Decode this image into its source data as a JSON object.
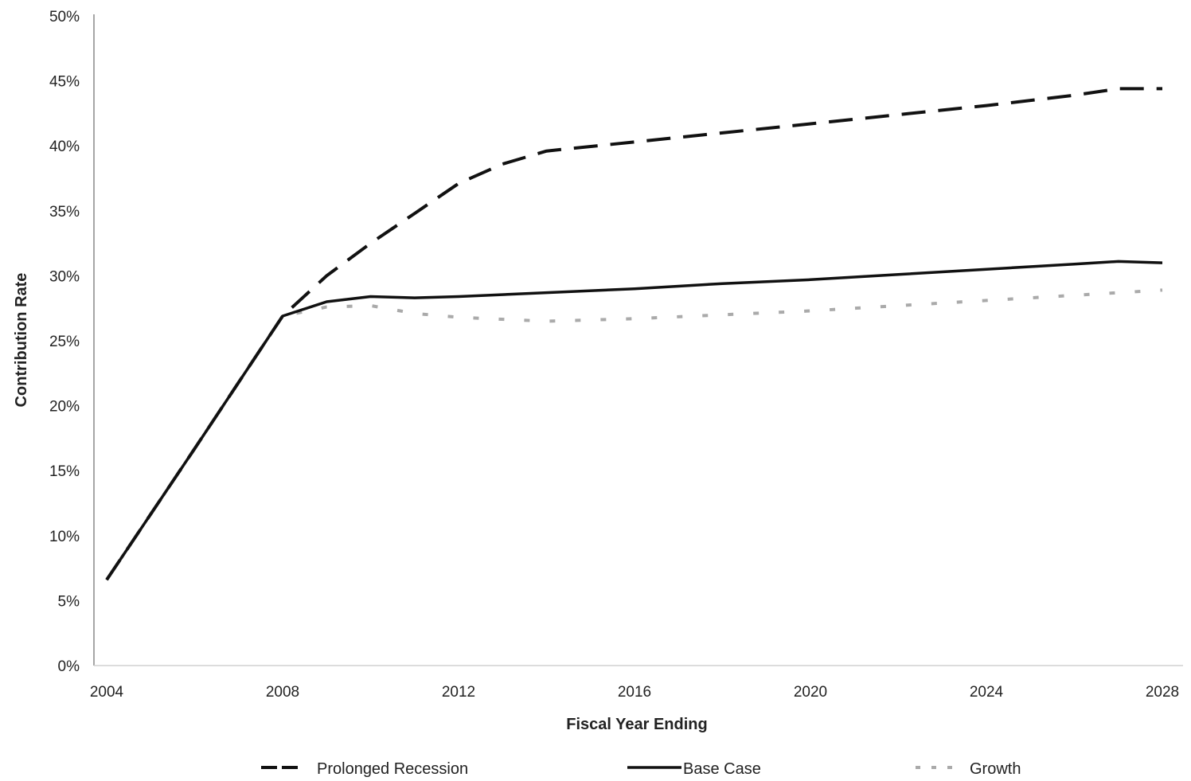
{
  "chart_data": {
    "type": "line",
    "title": "",
    "xlabel": "Fiscal Year Ending",
    "ylabel": "Contribution Rate",
    "xlim": [
      2004,
      2028
    ],
    "ylim": [
      0,
      50
    ],
    "x_ticks": [
      2004,
      2008,
      2012,
      2016,
      2020,
      2024,
      2028
    ],
    "y_ticks": [
      0,
      5,
      10,
      15,
      20,
      25,
      30,
      35,
      40,
      45,
      50
    ],
    "y_tick_format": "%",
    "grid": false,
    "legend": "bottom",
    "series": [
      {
        "name": "Prolonged Recession",
        "style": "dashed",
        "color": "#111111",
        "points": [
          [
            2004,
            6.6
          ],
          [
            2006,
            16.7
          ],
          [
            2008,
            26.9
          ],
          [
            2009,
            30.0
          ],
          [
            2010,
            32.5
          ],
          [
            2011,
            34.8
          ],
          [
            2012,
            37.1
          ],
          [
            2013,
            38.6
          ],
          [
            2014,
            39.6
          ],
          [
            2016,
            40.3
          ],
          [
            2018,
            41.0
          ],
          [
            2020,
            41.7
          ],
          [
            2022,
            42.4
          ],
          [
            2024,
            43.1
          ],
          [
            2026,
            43.9
          ],
          [
            2027,
            44.4
          ],
          [
            2028,
            44.4
          ]
        ]
      },
      {
        "name": "Base Case",
        "style": "solid",
        "color": "#111111",
        "points": [
          [
            2004,
            6.6
          ],
          [
            2006,
            16.7
          ],
          [
            2008,
            26.9
          ],
          [
            2009,
            28.0
          ],
          [
            2010,
            28.4
          ],
          [
            2011,
            28.3
          ],
          [
            2012,
            28.4
          ],
          [
            2014,
            28.7
          ],
          [
            2016,
            29.0
          ],
          [
            2018,
            29.4
          ],
          [
            2020,
            29.7
          ],
          [
            2022,
            30.1
          ],
          [
            2024,
            30.5
          ],
          [
            2026,
            30.9
          ],
          [
            2027,
            31.1
          ],
          [
            2028,
            31.0
          ]
        ]
      },
      {
        "name": "Growth",
        "style": "dotted",
        "color": "#aaaaaa",
        "points": [
          [
            2004,
            6.6
          ],
          [
            2006,
            16.7
          ],
          [
            2008,
            26.9
          ],
          [
            2009,
            27.6
          ],
          [
            2010,
            27.7
          ],
          [
            2011,
            27.1
          ],
          [
            2012,
            26.8
          ],
          [
            2014,
            26.5
          ],
          [
            2016,
            26.7
          ],
          [
            2018,
            27.0
          ],
          [
            2020,
            27.3
          ],
          [
            2022,
            27.7
          ],
          [
            2024,
            28.1
          ],
          [
            2026,
            28.5
          ],
          [
            2028,
            28.9
          ]
        ]
      }
    ]
  }
}
